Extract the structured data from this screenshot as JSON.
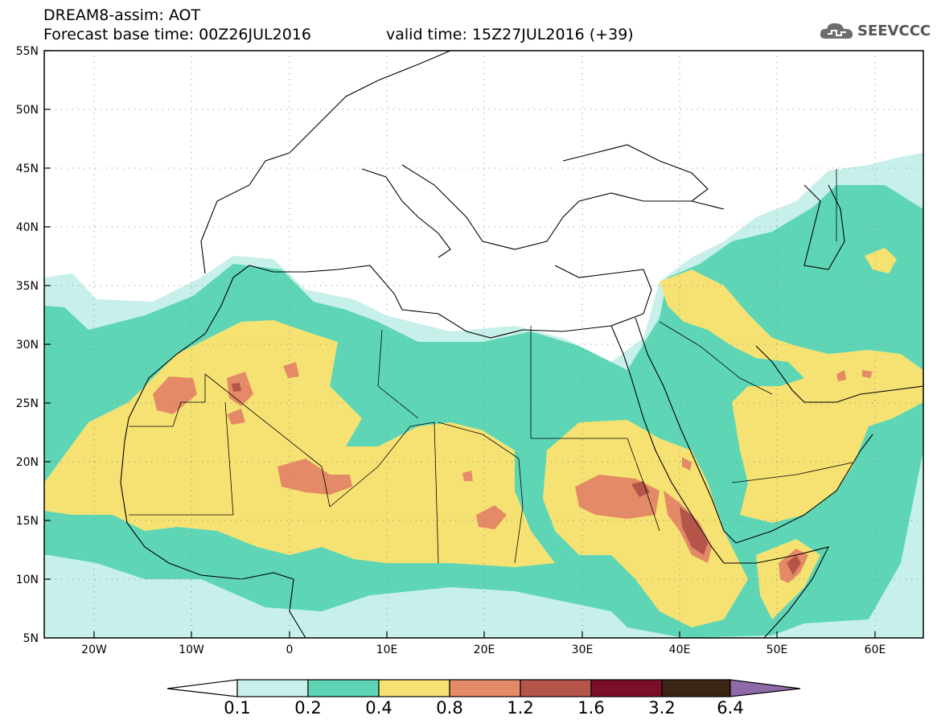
{
  "header": {
    "line1": "DREAM8-assim: AOT",
    "line2": "Forecast base time: 00Z26JUL2016",
    "line3": "valid time: 15Z27JUL2016 (+39)",
    "logo_text": "SEEVCCC"
  },
  "map": {
    "extent": {
      "lon": [
        -25,
        65
      ],
      "lat": [
        5,
        55
      ]
    },
    "lat_labels": [
      "55N",
      "50N",
      "45N",
      "40N",
      "35N",
      "30N",
      "25N",
      "20N",
      "15N",
      "10N",
      "5N"
    ],
    "lon_labels": [
      "20W",
      "10W",
      "0",
      "10E",
      "20E",
      "30E",
      "40E",
      "50E",
      "60E"
    ],
    "grid": "dotted"
  },
  "colorbar": {
    "colors": [
      "#ffffff",
      "#c8f0ea",
      "#5ed6b6",
      "#f6e273",
      "#e58a66",
      "#b5554a",
      "#7b0e2a",
      "#3b2414",
      "#8f6aa8"
    ],
    "labels": [
      "0.1",
      "0.2",
      "0.4",
      "0.8",
      "1.2",
      "1.6",
      "3.2",
      "6.4"
    ]
  }
}
